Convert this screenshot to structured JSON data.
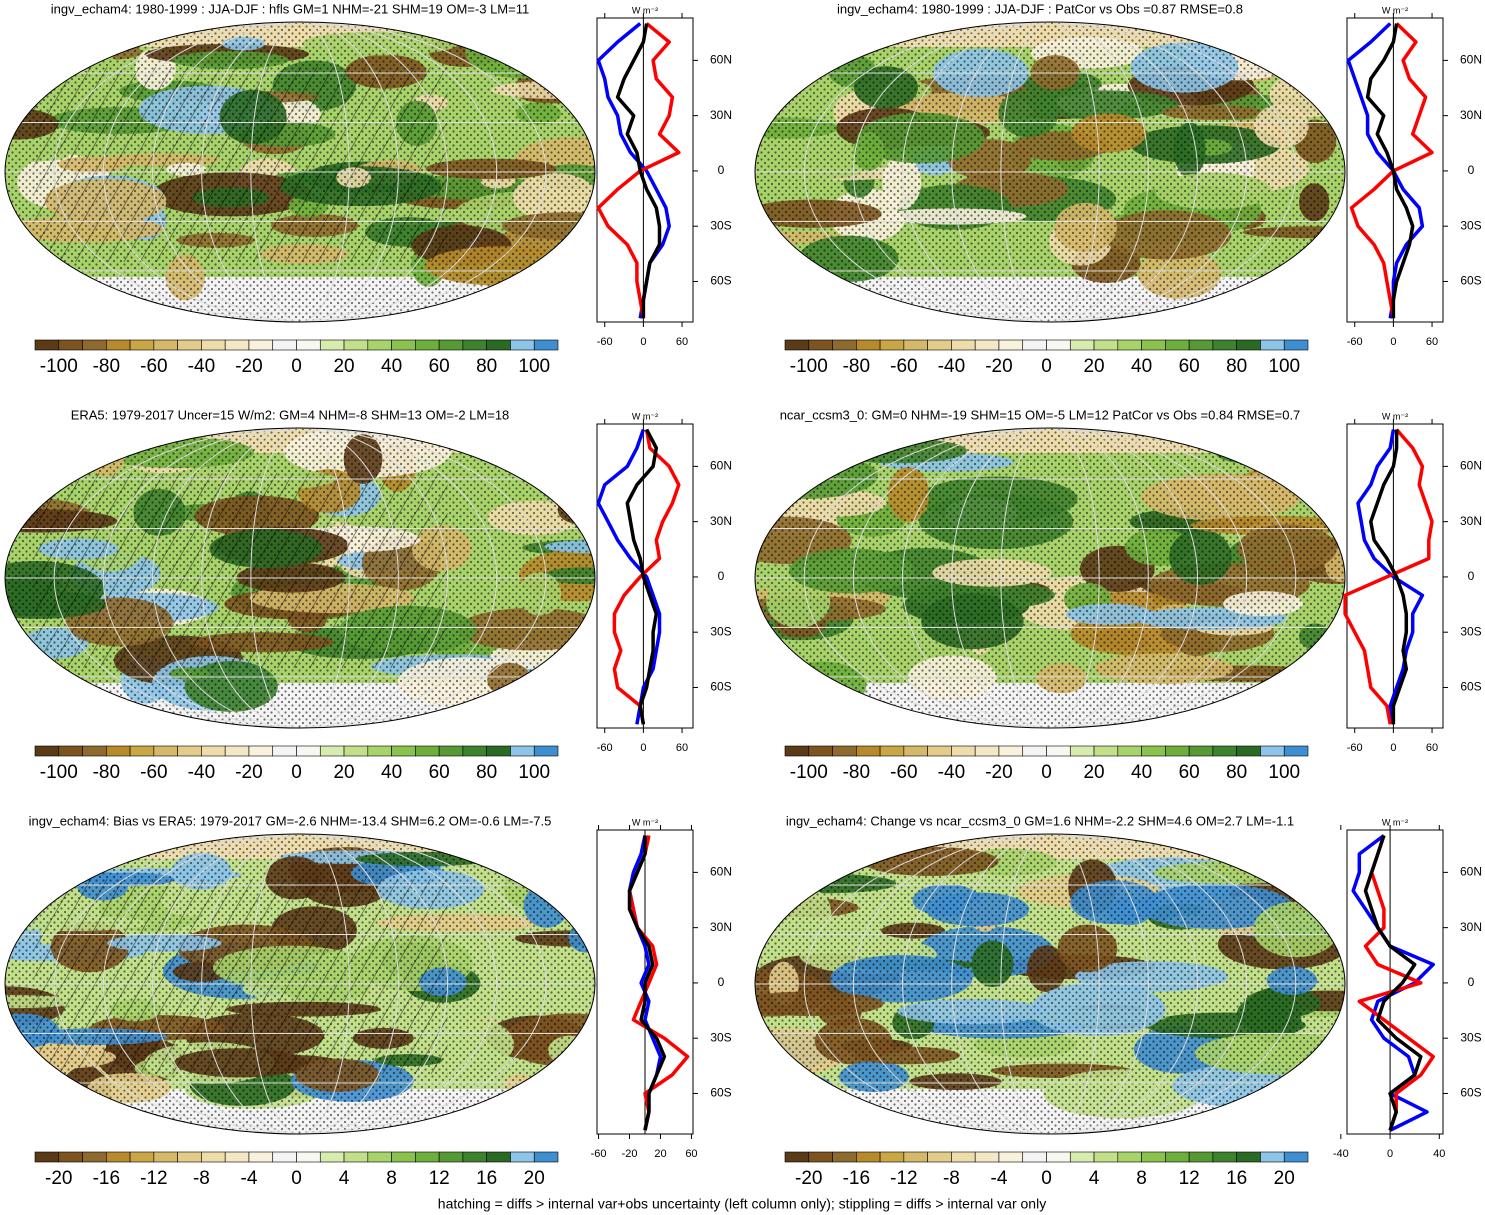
{
  "unit": "W m⁻²",
  "footer": "hatching = diffs > internal var+obs uncertainty (left column only); stippling = diffs > internal var only",
  "palette": [
    "#5b3a17",
    "#7d5420",
    "#8f6a2e",
    "#b78a2b",
    "#c9a646",
    "#d5b86a",
    "#e3cc8a",
    "#eedcaa",
    "#f3e7c6",
    "#f8f1dc",
    "#f4f4f4",
    "#f8f8f2",
    "#d8ecb0",
    "#c2e08a",
    "#a8d26a",
    "#8bc24e",
    "#6eae3c",
    "#579a35",
    "#3f822d",
    "#2b6a24",
    "#8dc4e8",
    "#3f8ed0"
  ],
  "chart_data": [
    {
      "type": "line",
      "title": "ingv_echam4: 1980-1999 : JJA-DJF : hfls GM=1 NHM=-21 SHM=19 OM=-3 LM=11",
      "hatching": true,
      "x": [
        -80,
        -70,
        -60,
        -50,
        -40,
        -30,
        -20,
        -10,
        0,
        10,
        20,
        30,
        40,
        50,
        60,
        70,
        80
      ],
      "xlim": [
        -82,
        83
      ],
      "xticks": [
        {
          "value": 60,
          "label": "60N"
        },
        {
          "value": 30,
          "label": "30N"
        },
        0,
        {
          "value": -30,
          "label": "30S"
        },
        {
          "value": -60,
          "label": "60S"
        }
      ],
      "ylim": [
        -72,
        77
      ],
      "yticks": [
        -60,
        0,
        60
      ],
      "series": [
        {
          "color": "#0000ff",
          "values": [
            -5,
            0,
            5,
            10,
            30,
            40,
            35,
            20,
            5,
            -20,
            -35,
            -40,
            -55,
            -60,
            -70,
            -40,
            -5
          ]
        },
        {
          "color": "#ff0000",
          "values": [
            0,
            -5,
            -10,
            -10,
            -25,
            -55,
            -70,
            -40,
            -5,
            55,
            25,
            40,
            45,
            20,
            15,
            40,
            5
          ]
        },
        {
          "color": "#000000",
          "values": [
            0,
            0,
            5,
            10,
            25,
            25,
            20,
            5,
            -5,
            -10,
            -25,
            -15,
            -40,
            -30,
            -15,
            0,
            5
          ]
        }
      ],
      "colorbar_ticks": [
        -100,
        -80,
        -60,
        -40,
        -20,
        0,
        20,
        40,
        60,
        80,
        100
      ]
    },
    {
      "type": "line",
      "title": "ingv_echam4: 1980-1999 : JJA-DJF : PatCor vs Obs =0.87 RMSE=0.8",
      "hatching": false,
      "x": [
        -80,
        -70,
        -60,
        -50,
        -40,
        -30,
        -20,
        -10,
        0,
        10,
        20,
        30,
        40,
        50,
        60,
        70,
        80
      ],
      "xlim": [
        -82,
        83
      ],
      "xticks": [
        {
          "value": 60,
          "label": "60N"
        },
        {
          "value": 30,
          "label": "30N"
        },
        0,
        {
          "value": -30,
          "label": "30S"
        },
        {
          "value": -60,
          "label": "60S"
        }
      ],
      "ylim": [
        -72,
        77
      ],
      "yticks": [
        -60,
        0,
        60
      ],
      "series": [
        {
          "color": "#0000ff",
          "values": [
            -5,
            0,
            0,
            5,
            20,
            45,
            40,
            15,
            0,
            -25,
            -40,
            -40,
            -50,
            -60,
            -70,
            -35,
            -5
          ]
        },
        {
          "color": "#ff0000",
          "values": [
            0,
            -5,
            -10,
            -15,
            -30,
            -55,
            -65,
            -30,
            0,
            60,
            30,
            40,
            50,
            25,
            15,
            35,
            5
          ]
        },
        {
          "color": "#000000",
          "values": [
            0,
            0,
            5,
            15,
            25,
            30,
            20,
            5,
            0,
            -10,
            -25,
            -15,
            -40,
            -35,
            -15,
            0,
            5
          ]
        }
      ],
      "colorbar_ticks": [
        -100,
        -80,
        -60,
        -40,
        -20,
        0,
        20,
        40,
        60,
        80,
        100
      ]
    },
    {
      "type": "line",
      "title": "ERA5: 1979-2017 Uncer=15 W/m2: GM=4 NHM=-8 SHM=13 OM=-2 LM=18",
      "hatching": true,
      "x": [
        -80,
        -70,
        -60,
        -50,
        -40,
        -30,
        -20,
        -10,
        0,
        10,
        20,
        30,
        40,
        50,
        60,
        70,
        80
      ],
      "xlim": [
        -82,
        83
      ],
      "xticks": [
        {
          "value": 60,
          "label": "60N"
        },
        {
          "value": 30,
          "label": "30N"
        },
        0,
        {
          "value": -30,
          "label": "30S"
        },
        {
          "value": -60,
          "label": "60S"
        }
      ],
      "ylim": [
        -72,
        77
      ],
      "yticks": [
        -60,
        0,
        60
      ],
      "series": [
        {
          "color": "#0000ff",
          "values": [
            -10,
            -5,
            0,
            15,
            20,
            25,
            25,
            15,
            5,
            -20,
            -40,
            -55,
            -70,
            -60,
            -25,
            -10,
            0
          ]
        },
        {
          "color": "#ff0000",
          "values": [
            0,
            -5,
            -40,
            -45,
            -35,
            -45,
            -45,
            -30,
            -5,
            25,
            20,
            30,
            45,
            55,
            40,
            10,
            5
          ]
        },
        {
          "color": "#000000",
          "values": [
            0,
            -5,
            5,
            10,
            15,
            15,
            20,
            10,
            0,
            -5,
            -15,
            -20,
            -25,
            -10,
            15,
            20,
            5
          ]
        }
      ],
      "colorbar_ticks": [
        -100,
        -80,
        -60,
        -40,
        -20,
        0,
        20,
        40,
        60,
        80,
        100
      ]
    },
    {
      "type": "line",
      "title": "ncar_ccsm3_0: GM=0 NHM=-19 SHM=15 OM=-5 LM=12 PatCor vs Obs =0.84 RMSE=0.7",
      "hatching": false,
      "x": [
        -80,
        -70,
        -60,
        -50,
        -40,
        -30,
        -20,
        -10,
        0,
        10,
        20,
        30,
        40,
        50,
        60,
        70,
        80
      ],
      "xlim": [
        -82,
        83
      ],
      "xticks": [
        {
          "value": 60,
          "label": "60N"
        },
        {
          "value": 30,
          "label": "30N"
        },
        0,
        {
          "value": -30,
          "label": "30S"
        },
        {
          "value": -60,
          "label": "60S"
        }
      ],
      "ylim": [
        -72,
        77
      ],
      "yticks": [
        -60,
        0,
        60
      ],
      "series": [
        {
          "color": "#0000ff",
          "values": [
            0,
            -5,
            5,
            15,
            20,
            30,
            30,
            45,
            0,
            -30,
            -45,
            -50,
            -55,
            -35,
            -25,
            -5,
            0
          ]
        },
        {
          "color": "#ff0000",
          "values": [
            -5,
            -10,
            -35,
            -40,
            -45,
            -60,
            -75,
            -75,
            -10,
            55,
            55,
            60,
            50,
            40,
            45,
            30,
            5
          ]
        },
        {
          "color": "#000000",
          "values": [
            0,
            0,
            10,
            20,
            15,
            20,
            20,
            15,
            5,
            -10,
            -30,
            -35,
            -25,
            -15,
            0,
            5,
            5
          ]
        }
      ],
      "colorbar_ticks": [
        -100,
        -80,
        -60,
        -40,
        -20,
        0,
        20,
        40,
        60,
        80,
        100
      ]
    },
    {
      "type": "line",
      "title": "ingv_echam4: Bias vs ERA5: 1979-2017 GM=-2.6 NHM=-13.4 SHM=6.2 OM=-0.6 LM=-7.5",
      "hatching": true,
      "x": [
        -80,
        -70,
        -60,
        -50,
        -40,
        -30,
        -20,
        -10,
        0,
        10,
        20,
        30,
        40,
        50,
        60,
        70,
        80
      ],
      "xlim": [
        -82,
        83
      ],
      "xticks": [
        {
          "value": 60,
          "label": "60N"
        },
        {
          "value": 30,
          "label": "30N"
        },
        0,
        {
          "value": -30,
          "label": "30S"
        },
        {
          "value": -60,
          "label": "60S"
        }
      ],
      "ylim": [
        -62,
        62
      ],
      "yticks": [
        -60,
        -20,
        20,
        60
      ],
      "series": [
        {
          "color": "#0000ff",
          "values": [
            0,
            5,
            5,
            15,
            20,
            10,
            0,
            5,
            -5,
            5,
            0,
            -10,
            -15,
            -20,
            -15,
            -5,
            0
          ]
        },
        {
          "color": "#ff0000",
          "values": [
            0,
            5,
            0,
            35,
            55,
            25,
            -15,
            -5,
            5,
            15,
            10,
            -10,
            -15,
            -20,
            -10,
            0,
            5
          ]
        },
        {
          "color": "#000000",
          "values": [
            0,
            5,
            5,
            15,
            25,
            15,
            -5,
            0,
            0,
            10,
            5,
            -10,
            -20,
            -20,
            -10,
            0,
            0
          ]
        }
      ],
      "colorbar_ticks": [
        -20,
        -16,
        -12,
        -8,
        -4,
        0,
        4,
        8,
        12,
        16,
        20
      ]
    },
    {
      "type": "line",
      "title": "ingv_echam4: Change vs ncar_ccsm3_0 GM=1.6 NHM=-2.2 SHM=4.6 OM=2.7 LM=-1.1",
      "hatching": false,
      "x": [
        -80,
        -70,
        -60,
        -50,
        -40,
        -30,
        -20,
        -10,
        0,
        10,
        20,
        30,
        40,
        50,
        60,
        70,
        80
      ],
      "xlim": [
        -82,
        83
      ],
      "xticks": [
        {
          "value": 60,
          "label": "60N"
        },
        {
          "value": 30,
          "label": "30N"
        },
        0,
        {
          "value": -30,
          "label": "30S"
        },
        {
          "value": -60,
          "label": "60S"
        }
      ],
      "ylim": [
        -35,
        43
      ],
      "yticks": [
        -40,
        0,
        40
      ],
      "series": [
        {
          "color": "#0000ff",
          "values": [
            0,
            30,
            0,
            20,
            15,
            -5,
            -15,
            -10,
            20,
            35,
            0,
            -10,
            -20,
            -30,
            -25,
            -25,
            -5
          ]
        },
        {
          "color": "#ff0000",
          "values": [
            0,
            5,
            5,
            25,
            35,
            15,
            -5,
            -25,
            25,
            -10,
            -20,
            -5,
            -5,
            -10,
            -15,
            -10,
            -5
          ]
        },
        {
          "color": "#000000",
          "values": [
            0,
            5,
            0,
            20,
            25,
            5,
            -10,
            -5,
            10,
            20,
            0,
            -10,
            -15,
            -20,
            -15,
            -10,
            -5
          ]
        }
      ],
      "colorbar_ticks": [
        -20,
        -16,
        -12,
        -8,
        -4,
        0,
        4,
        8,
        12,
        16,
        20
      ]
    }
  ]
}
